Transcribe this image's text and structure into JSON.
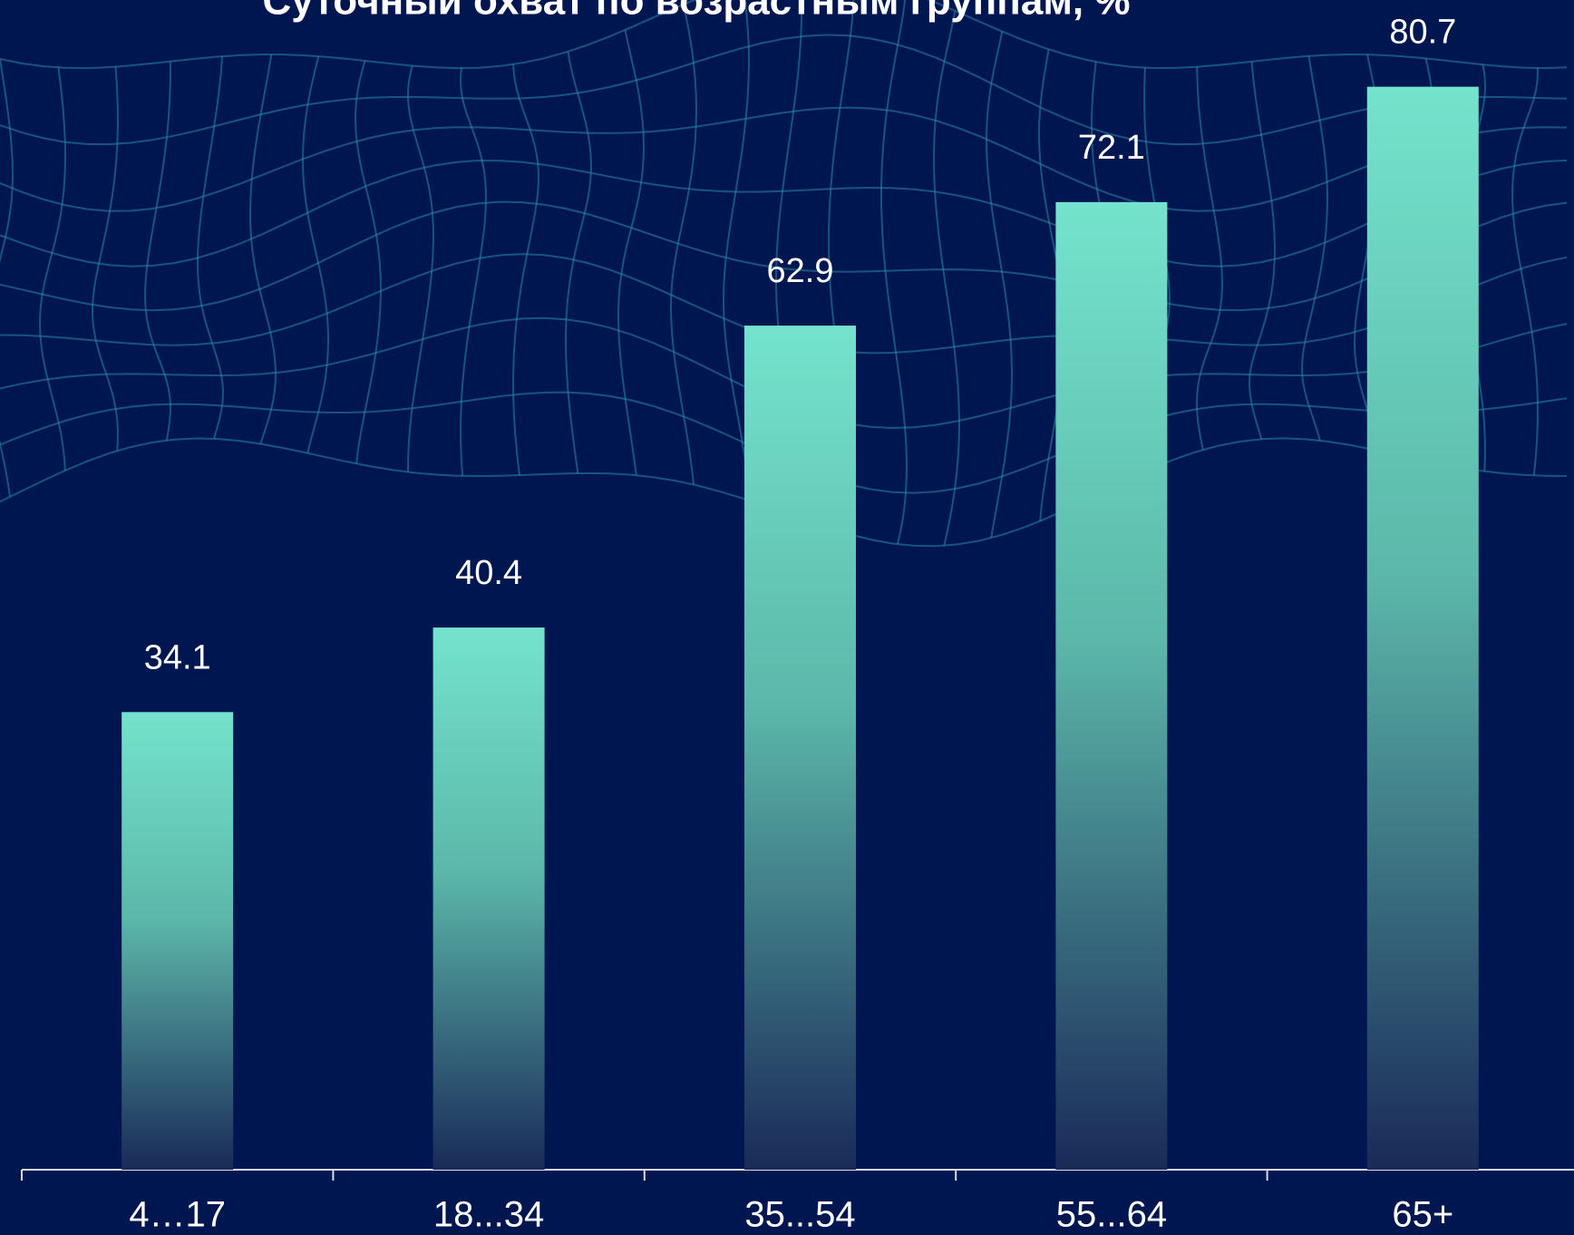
{
  "chart_data": {
    "type": "bar",
    "title": "Суточный охват по возрастным группам, %",
    "categories": [
      "4…17",
      "18...34",
      "35...54",
      "55...64",
      "65+"
    ],
    "values": [
      34.1,
      40.4,
      62.9,
      72.1,
      80.7
    ],
    "color": "#74e3cc"
  }
}
